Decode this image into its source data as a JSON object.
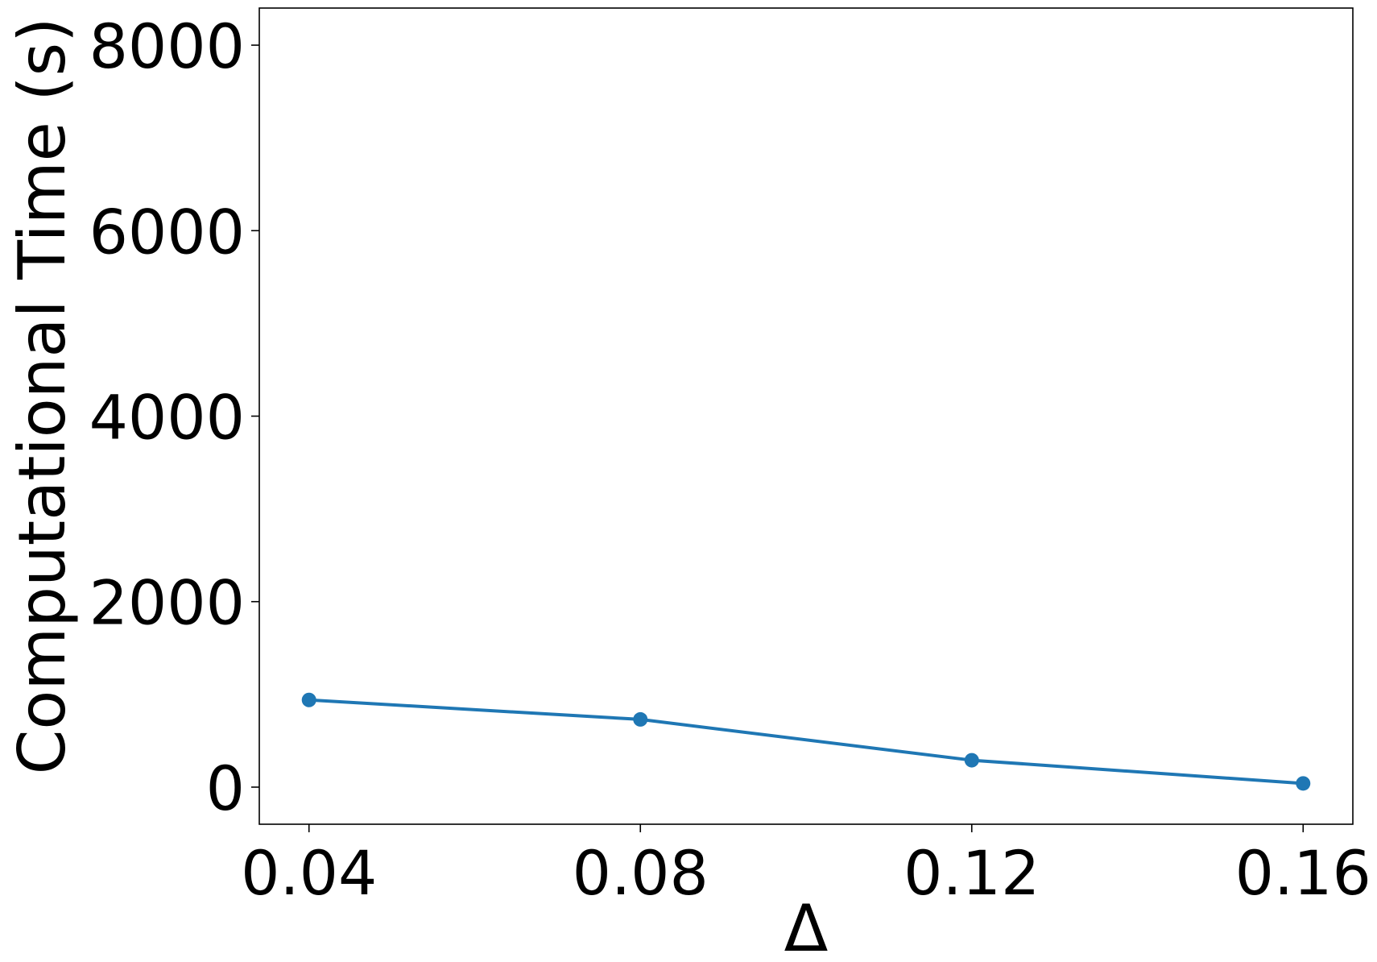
{
  "chart_data": {
    "type": "line",
    "xlabel": "Δ",
    "ylabel": "Computational Time (s)",
    "x": [
      0.04,
      0.08,
      0.12,
      0.16
    ],
    "x_tick_labels": [
      "0.04",
      "0.08",
      "0.12",
      "0.16"
    ],
    "y_ticks": [
      0,
      2000,
      4000,
      6000,
      8000
    ],
    "y_tick_labels": [
      "0",
      "2000",
      "4000",
      "6000",
      "8000"
    ],
    "xlim": [
      0.034,
      0.166
    ],
    "ylim": [
      -400,
      8400
    ],
    "grid": false,
    "series": [
      {
        "values": [
          940,
          730,
          290,
          40
        ],
        "color": "#1f77b4"
      }
    ]
  }
}
